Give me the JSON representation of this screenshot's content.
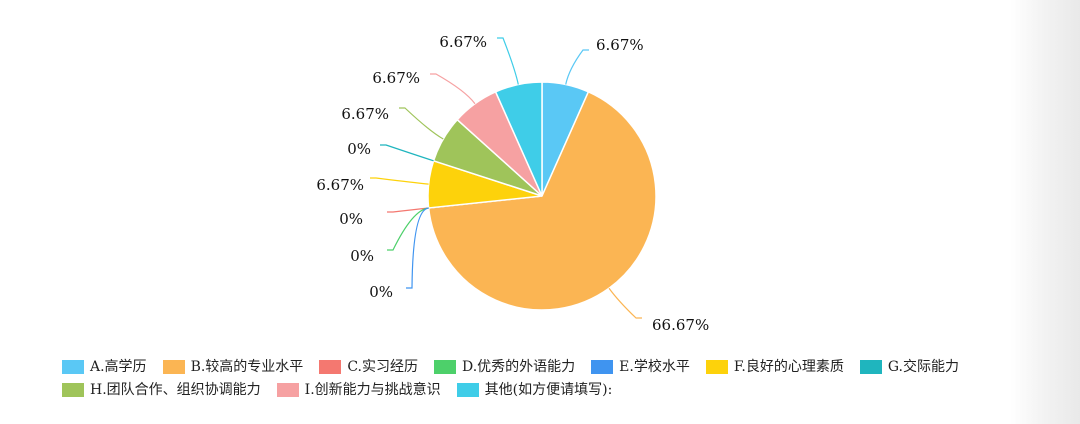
{
  "chart_data": {
    "type": "pie",
    "categories": [
      "A.高学历",
      "B.较高的专业水平",
      "C.实习经历",
      "D.优秀的外语能力",
      "E.学校水平",
      "F.良好的心理素质",
      "G.交际能力",
      "H.团队合作、组织协调能力",
      "I.创新能力与挑战意识",
      "其他(如方便请填写):"
    ],
    "values": [
      6.67,
      66.67,
      0,
      0,
      0,
      6.67,
      0,
      6.67,
      6.67,
      6.67
    ],
    "data_labels": [
      "6.67%",
      "66.67%",
      "0%",
      "0%",
      "0%",
      "6.67%",
      "0%",
      "6.67%",
      "6.67%",
      "6.67%"
    ],
    "colors": [
      "#5ac8f5",
      "#fbb553",
      "#f47870",
      "#4dd06a",
      "#3f94f0",
      "#fdd20b",
      "#1fb5be",
      "#9fc45a",
      "#f6a1a2",
      "#3fcde8"
    ],
    "legend_position": "bottom",
    "title": ""
  }
}
